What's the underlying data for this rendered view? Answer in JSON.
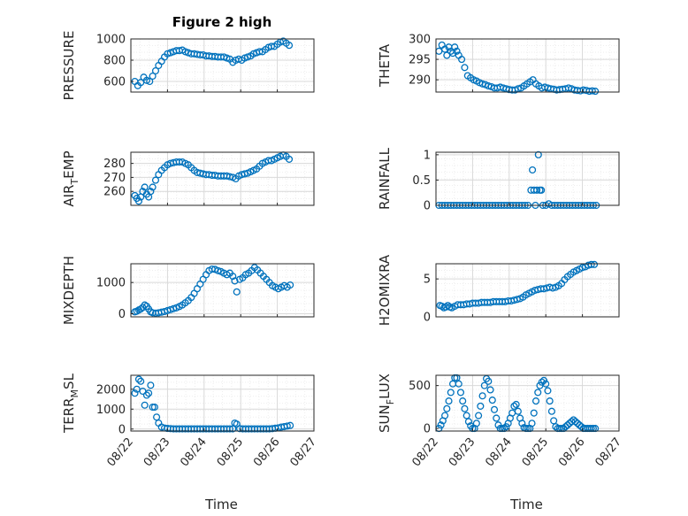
{
  "figure_title": "Figure 2 high",
  "colors": {
    "marker": "#0072BD",
    "axis": "#262626",
    "grid": "#d9d9d9",
    "minor_grid": "#eeeeee"
  },
  "chart_data": [
    {
      "type": "scatter",
      "name": "PRESSURE",
      "ylabel": {
        "main": "PRESSURE",
        "sub": "",
        "rest": ""
      },
      "ylim": [
        500,
        1000
      ],
      "yticks": [
        600,
        800,
        1000
      ],
      "xlim": [
        0,
        3.7
      ],
      "xticklabels": [],
      "x": [
        0.08,
        0.14,
        0.2,
        0.26,
        0.32,
        0.38,
        0.44,
        0.5,
        0.56,
        0.62,
        0.68,
        0.74,
        0.8,
        0.86,
        0.92,
        0.98,
        1.04,
        1.1,
        1.16,
        1.22,
        1.28,
        1.34,
        1.4,
        1.46,
        1.52,
        1.58,
        1.64,
        1.7,
        1.76,
        1.82,
        1.88,
        1.94,
        2.0,
        2.06,
        2.12,
        2.18,
        2.24,
        2.3,
        2.36,
        2.42,
        2.48,
        2.54,
        2.6,
        2.66,
        2.72,
        2.78,
        2.84,
        2.9,
        2.96,
        3.02,
        3.08,
        3.14,
        3.2
      ],
      "y": [
        600,
        560,
        590,
        640,
        610,
        600,
        650,
        700,
        750,
        790,
        830,
        860,
        870,
        880,
        890,
        890,
        895,
        880,
        870,
        860,
        860,
        855,
        850,
        850,
        840,
        840,
        835,
        835,
        830,
        830,
        830,
        820,
        810,
        780,
        800,
        810,
        800,
        820,
        830,
        840,
        860,
        870,
        880,
        880,
        900,
        920,
        930,
        930,
        950,
        970,
        980,
        960,
        940
      ]
    },
    {
      "type": "scatter",
      "name": "THETA",
      "ylabel": {
        "main": "THETA",
        "sub": "",
        "rest": ""
      },
      "ylim": [
        287,
        300
      ],
      "yticks": [
        290,
        295,
        300
      ],
      "xlim": [
        0,
        3.7
      ],
      "xticklabels": [],
      "x": [
        0.06,
        0.12,
        0.18,
        0.22,
        0.26,
        0.3,
        0.34,
        0.38,
        0.42,
        0.46,
        0.52,
        0.58,
        0.64,
        0.7,
        0.76,
        0.82,
        0.88,
        0.94,
        1.0,
        1.06,
        1.12,
        1.18,
        1.24,
        1.3,
        1.36,
        1.42,
        1.48,
        1.54,
        1.6,
        1.66,
        1.72,
        1.78,
        1.84,
        1.9,
        1.96,
        2.02,
        2.08,
        2.14,
        2.2,
        2.26,
        2.32,
        2.38,
        2.44,
        2.5,
        2.56,
        2.62,
        2.68,
        2.74,
        2.8,
        2.86,
        2.92,
        2.98,
        3.04,
        3.1,
        3.16,
        3.22
      ],
      "y": [
        297,
        298.5,
        297.5,
        296,
        298,
        297,
        296.5,
        298,
        297,
        296,
        295,
        293,
        291,
        290.5,
        290,
        289.7,
        289.3,
        289,
        288.8,
        288.5,
        288.3,
        288,
        288,
        288.2,
        288,
        287.8,
        287.6,
        287.5,
        287.5,
        287.8,
        288,
        288.5,
        289,
        289.5,
        290,
        289,
        288.5,
        288,
        288.2,
        288,
        287.8,
        287.7,
        287.5,
        287.6,
        287.7,
        287.8,
        288,
        287.8,
        287.5,
        287.4,
        287.3,
        287.5,
        287.4,
        287.2,
        287.3,
        287.2
      ]
    },
    {
      "type": "scatter",
      "name": "AIR_TEMP",
      "ylabel": {
        "main": "AIR",
        "sub": "T",
        "rest": "EMP"
      },
      "ylim": [
        250,
        288
      ],
      "yticks": [
        260,
        270,
        280
      ],
      "xlim": [
        0,
        3.7
      ],
      "xticklabels": [],
      "x": [
        0.08,
        0.12,
        0.16,
        0.2,
        0.24,
        0.28,
        0.32,
        0.36,
        0.4,
        0.44,
        0.5,
        0.56,
        0.62,
        0.68,
        0.74,
        0.8,
        0.86,
        0.92,
        0.98,
        1.04,
        1.1,
        1.16,
        1.22,
        1.28,
        1.34,
        1.4,
        1.46,
        1.52,
        1.58,
        1.64,
        1.7,
        1.76,
        1.82,
        1.88,
        1.94,
        2.0,
        2.06,
        2.12,
        2.18,
        2.24,
        2.3,
        2.36,
        2.42,
        2.48,
        2.54,
        2.6,
        2.66,
        2.72,
        2.78,
        2.84,
        2.9,
        2.96,
        3.02,
        3.08,
        3.14,
        3.2
      ],
      "y": [
        257,
        255,
        253,
        256,
        260,
        263,
        258,
        256,
        260,
        263,
        268,
        272,
        275,
        277,
        279,
        280,
        280.5,
        281,
        281,
        281,
        280,
        279,
        277,
        275,
        273.5,
        273,
        272.5,
        272,
        272,
        271.5,
        271.5,
        271,
        271,
        271,
        271,
        270.5,
        270,
        269,
        271,
        272,
        272.5,
        273,
        274,
        275,
        276,
        278,
        280,
        281,
        282,
        282,
        283,
        284,
        285,
        286,
        285,
        283
      ]
    },
    {
      "type": "scatter",
      "name": "RAINFALL",
      "ylabel": {
        "main": "RAINFALL",
        "sub": "",
        "rest": ""
      },
      "ylim": [
        0,
        1.05
      ],
      "yticks": [
        0,
        0.5,
        1
      ],
      "xlim": [
        0,
        3.7
      ],
      "xticklabels": [],
      "x": [
        0.06,
        0.12,
        0.18,
        0.24,
        0.3,
        0.36,
        0.42,
        0.48,
        0.54,
        0.6,
        0.66,
        0.72,
        0.78,
        0.84,
        0.9,
        0.96,
        1.02,
        1.08,
        1.14,
        1.2,
        1.26,
        1.32,
        1.38,
        1.44,
        1.5,
        1.56,
        1.62,
        1.68,
        1.74,
        1.8,
        1.86,
        1.92,
        1.95,
        1.98,
        2.01,
        2.04,
        2.07,
        2.1,
        2.13,
        2.16,
        2.22,
        2.28,
        2.34,
        2.4,
        2.46,
        2.52,
        2.58,
        2.64,
        2.7,
        2.76,
        2.82,
        2.88,
        2.94,
        3.0,
        3.06,
        3.12,
        3.18,
        3.24
      ],
      "y": [
        0,
        0,
        0,
        0,
        0,
        0,
        0,
        0,
        0,
        0,
        0,
        0,
        0,
        0,
        0,
        0,
        0,
        0,
        0,
        0,
        0,
        0,
        0,
        0,
        0,
        0,
        0,
        0,
        0,
        0,
        0,
        0.3,
        0.7,
        0.3,
        0,
        0.3,
        1.0,
        0.3,
        0.3,
        0,
        0,
        0.03,
        0,
        0,
        0,
        0,
        0,
        0,
        0,
        0,
        0,
        0,
        0,
        0,
        0,
        0,
        0,
        0
      ]
    },
    {
      "type": "scatter",
      "name": "MIXDEPTH",
      "ylabel": {
        "main": "MIXDEPTH",
        "sub": "",
        "rest": ""
      },
      "ylim": [
        -100,
        1600
      ],
      "yticks": [
        0,
        1000
      ],
      "xlim": [
        0,
        3.7
      ],
      "xticklabels": [],
      "x": [
        0.08,
        0.12,
        0.16,
        0.2,
        0.24,
        0.28,
        0.32,
        0.36,
        0.4,
        0.44,
        0.5,
        0.56,
        0.62,
        0.68,
        0.74,
        0.8,
        0.86,
        0.92,
        0.98,
        1.04,
        1.1,
        1.16,
        1.22,
        1.28,
        1.34,
        1.4,
        1.46,
        1.52,
        1.58,
        1.64,
        1.7,
        1.76,
        1.82,
        1.88,
        1.94,
        2.0,
        2.06,
        2.1,
        2.14,
        2.2,
        2.26,
        2.32,
        2.38,
        2.44,
        2.5,
        2.56,
        2.62,
        2.68,
        2.74,
        2.8,
        2.86,
        2.92,
        2.98,
        3.04,
        3.1,
        3.16,
        3.22
      ],
      "y": [
        60,
        80,
        120,
        150,
        200,
        280,
        240,
        150,
        60,
        30,
        20,
        30,
        50,
        70,
        100,
        130,
        160,
        190,
        230,
        280,
        350,
        420,
        520,
        650,
        800,
        950,
        1100,
        1250,
        1380,
        1430,
        1420,
        1380,
        1350,
        1300,
        1250,
        1300,
        1200,
        1050,
        700,
        1100,
        1150,
        1250,
        1300,
        1380,
        1480,
        1400,
        1300,
        1200,
        1100,
        1000,
        900,
        850,
        800,
        850,
        900,
        850,
        920
      ]
    },
    {
      "type": "scatter",
      "name": "H2OMIXRA",
      "ylabel": {
        "main": "H2OMIXRA",
        "sub": "",
        "rest": ""
      },
      "ylim": [
        0,
        7
      ],
      "yticks": [
        0,
        5
      ],
      "xlim": [
        0,
        3.7
      ],
      "xticklabels": [],
      "x": [
        0.08,
        0.12,
        0.16,
        0.2,
        0.24,
        0.28,
        0.32,
        0.38,
        0.44,
        0.5,
        0.56,
        0.62,
        0.68,
        0.74,
        0.8,
        0.86,
        0.92,
        0.98,
        1.04,
        1.1,
        1.16,
        1.22,
        1.28,
        1.34,
        1.4,
        1.46,
        1.52,
        1.58,
        1.64,
        1.7,
        1.76,
        1.82,
        1.88,
        1.94,
        2.0,
        2.06,
        2.12,
        2.18,
        2.24,
        2.3,
        2.36,
        2.42,
        2.48,
        2.54,
        2.6,
        2.66,
        2.72,
        2.78,
        2.84,
        2.9,
        2.96,
        3.02,
        3.08,
        3.14,
        3.2
      ],
      "y": [
        1.5,
        1.4,
        1.2,
        1.3,
        1.5,
        1.3,
        1.2,
        1.4,
        1.6,
        1.6,
        1.6,
        1.7,
        1.7,
        1.8,
        1.8,
        1.8,
        1.9,
        1.9,
        1.9,
        1.9,
        2.0,
        2.0,
        2.0,
        2.0,
        2.0,
        2.1,
        2.1,
        2.2,
        2.3,
        2.4,
        2.6,
        2.9,
        3.1,
        3.3,
        3.5,
        3.6,
        3.7,
        3.7,
        3.8,
        3.9,
        3.8,
        3.9,
        4.1,
        4.4,
        4.9,
        5.3,
        5.6,
        5.9,
        6.1,
        6.3,
        6.5,
        6.6,
        6.8,
        6.9,
        6.9
      ]
    },
    {
      "type": "scatter",
      "name": "TERR_MSL",
      "ylabel": {
        "main": "TERR",
        "sub": "M",
        "rest": "SL"
      },
      "ylim": [
        -100,
        2700
      ],
      "yticks": [
        0,
        1000,
        2000
      ],
      "xlim": [
        0,
        3.7
      ],
      "xticklabels": [
        "08/22",
        "08/23",
        "08/24",
        "08/25",
        "08/26",
        "08/27"
      ],
      "xlabel": "Time",
      "x": [
        0.08,
        0.12,
        0.16,
        0.2,
        0.24,
        0.28,
        0.32,
        0.36,
        0.4,
        0.44,
        0.48,
        0.52,
        0.56,
        0.62,
        0.68,
        0.74,
        0.8,
        0.86,
        0.92,
        0.98,
        1.04,
        1.1,
        1.16,
        1.22,
        1.28,
        1.34,
        1.4,
        1.46,
        1.52,
        1.58,
        1.64,
        1.7,
        1.76,
        1.82,
        1.88,
        1.94,
        2.0,
        2.06,
        2.1,
        2.14,
        2.2,
        2.26,
        2.32,
        2.38,
        2.44,
        2.5,
        2.56,
        2.62,
        2.68,
        2.74,
        2.8,
        2.86,
        2.92,
        2.98,
        3.04,
        3.1,
        3.16,
        3.22
      ],
      "y": [
        1800,
        2000,
        2500,
        2400,
        1900,
        1200,
        1700,
        1800,
        2200,
        1100,
        1100,
        600,
        300,
        100,
        50,
        30,
        20,
        10,
        10,
        10,
        10,
        10,
        10,
        10,
        10,
        10,
        10,
        10,
        10,
        10,
        10,
        10,
        10,
        10,
        10,
        10,
        10,
        10,
        300,
        250,
        20,
        10,
        10,
        10,
        10,
        10,
        10,
        10,
        10,
        10,
        10,
        20,
        40,
        60,
        100,
        120,
        150,
        180
      ]
    },
    {
      "type": "scatter",
      "name": "SUN_FLUX",
      "ylabel": {
        "main": "SUN",
        "sub": "F",
        "rest": "LUX"
      },
      "ylim": [
        -30,
        620
      ],
      "yticks": [
        0,
        500
      ],
      "xlim": [
        0,
        3.7
      ],
      "xticklabels": [
        "08/22",
        "08/23",
        "08/24",
        "08/25",
        "08/26",
        "08/27"
      ],
      "xlabel": "Time",
      "x": [
        0.06,
        0.1,
        0.14,
        0.18,
        0.22,
        0.26,
        0.3,
        0.34,
        0.38,
        0.42,
        0.46,
        0.5,
        0.54,
        0.58,
        0.62,
        0.66,
        0.7,
        0.74,
        0.78,
        0.82,
        0.86,
        0.9,
        0.94,
        0.98,
        1.02,
        1.06,
        1.1,
        1.14,
        1.18,
        1.22,
        1.26,
        1.3,
        1.34,
        1.38,
        1.42,
        1.46,
        1.5,
        1.54,
        1.58,
        1.62,
        1.66,
        1.7,
        1.74,
        1.78,
        1.82,
        1.86,
        1.9,
        1.94,
        1.98,
        2.02,
        2.06,
        2.1,
        2.14,
        2.18,
        2.22,
        2.26,
        2.3,
        2.34,
        2.38,
        2.42,
        2.46,
        2.5,
        2.54,
        2.58,
        2.62,
        2.66,
        2.7,
        2.74,
        2.78,
        2.82,
        2.86,
        2.9,
        2.94,
        2.98,
        3.02,
        3.06,
        3.1,
        3.14,
        3.18,
        3.22
      ],
      "y": [
        0,
        40,
        90,
        150,
        230,
        320,
        420,
        520,
        590,
        590,
        520,
        420,
        320,
        230,
        150,
        80,
        30,
        0,
        0,
        60,
        150,
        260,
        380,
        500,
        580,
        550,
        450,
        330,
        220,
        120,
        40,
        0,
        0,
        0,
        20,
        60,
        120,
        180,
        260,
        280,
        200,
        120,
        60,
        10,
        0,
        0,
        0,
        60,
        180,
        320,
        420,
        500,
        540,
        560,
        520,
        440,
        320,
        200,
        90,
        20,
        0,
        0,
        0,
        0,
        20,
        40,
        60,
        80,
        100,
        80,
        60,
        40,
        20,
        0,
        0,
        0,
        0,
        0,
        0,
        0
      ]
    }
  ]
}
